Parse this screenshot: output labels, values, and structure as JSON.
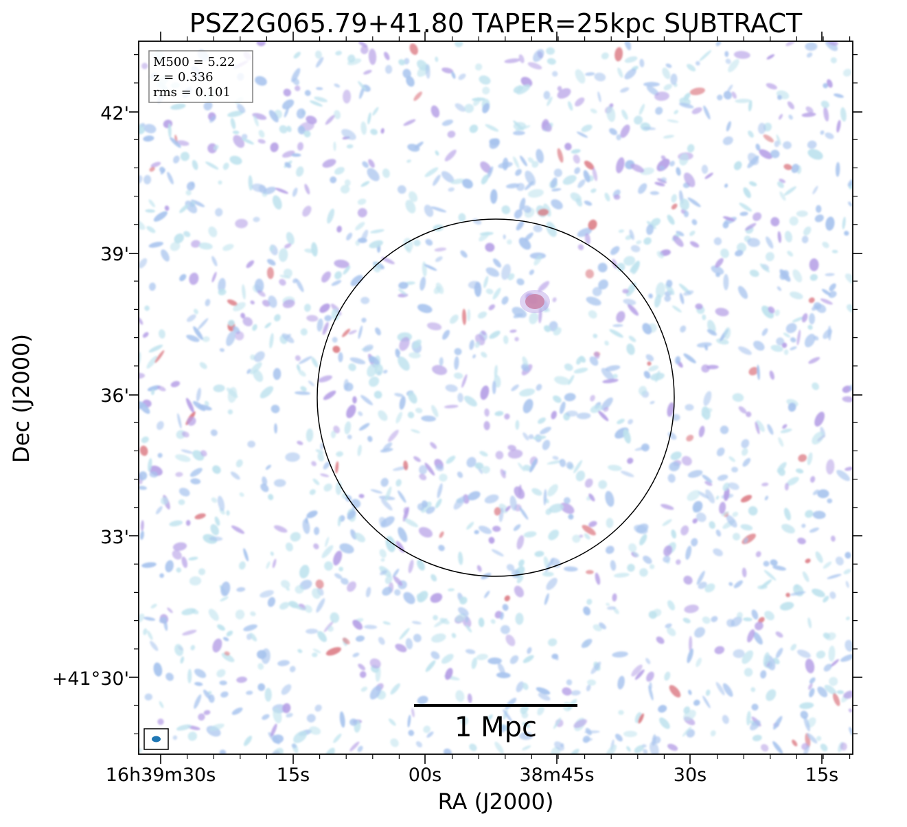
{
  "chart_data": {
    "type": "heatmap",
    "title": "PSZ2G065.79+41.80 TAPER=25kpc SUBTRACT",
    "xlabel": "RA (J2000)",
    "ylabel": "Dec (J2000)",
    "x_ticks": [
      "16h39m30s",
      "15s",
      "00s",
      "38m45s",
      "30s",
      "15s"
    ],
    "y_ticks": [
      "+41°30'",
      "33'",
      "36'",
      "39'",
      "42'"
    ],
    "info_box": [
      "M500 = 5.22",
      "z = 0.336",
      "rms = 0.101"
    ],
    "scalebar_label": "1 Mpc",
    "colors": {
      "noise_light": "#bfe3ee",
      "noise_mid": "#a8c4ee",
      "noise_strong": "#b6a0e6",
      "source": "#d9707a",
      "beam": "#1f77b4"
    }
  }
}
